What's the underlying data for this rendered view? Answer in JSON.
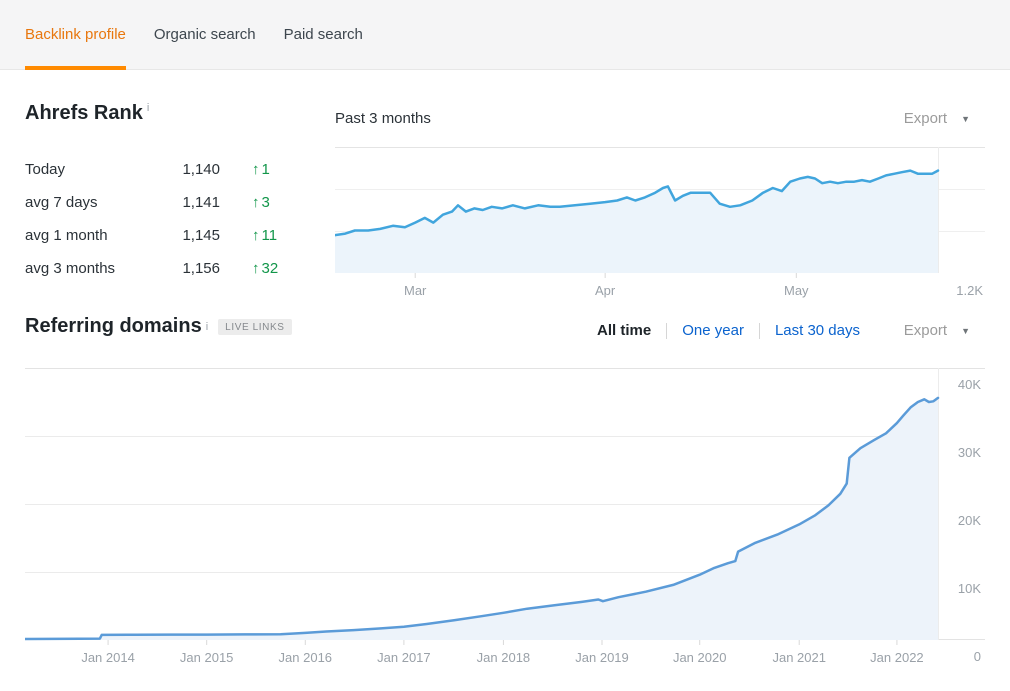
{
  "icons": {
    "info": "i",
    "caret_down": "▼",
    "up_arrow": "↑"
  },
  "colors": {
    "accent_orange": "#ff8a00",
    "tab_active_text": "#e8770e",
    "link_blue": "#0b63ce",
    "positive_green": "#12964a",
    "rank_line": "#41a5dd",
    "rank_fill": "#ecf4fb",
    "domains_line": "#5b9bd8",
    "domains_fill": "#edf3fa"
  },
  "tabs": {
    "items": [
      {
        "label": "Backlink profile",
        "active": true
      },
      {
        "label": "Organic search",
        "active": false
      },
      {
        "label": "Paid search",
        "active": false
      }
    ]
  },
  "ahrefs_rank": {
    "title": "Ahrefs Rank",
    "rows": [
      {
        "label": "Today",
        "value": "1,140",
        "delta": "1"
      },
      {
        "label": "avg 7 days",
        "value": "1,141",
        "delta": "3"
      },
      {
        "label": "avg 1 month",
        "value": "1,145",
        "delta": "11"
      },
      {
        "label": "avg 3 months",
        "value": "1,156",
        "delta": "32"
      }
    ]
  },
  "rank_panel": {
    "title": "Past 3 months",
    "export_label": "Export"
  },
  "referring_domains": {
    "title": "Referring domains",
    "badge": "LIVE LINKS",
    "filters": [
      {
        "label": "All time",
        "active": true
      },
      {
        "label": "One year",
        "active": false
      },
      {
        "label": "Last 30 days",
        "active": false
      }
    ],
    "export_label": "Export"
  },
  "chart_data": [
    {
      "type": "area",
      "name": "ahrefs-rank-past-3-months",
      "title": "Past 3 months",
      "y_axis": {
        "bottom": 1205,
        "top": 1125,
        "inverted_rank_axis": true
      },
      "y_bottom_label": "1.2K",
      "x_labels": [
        {
          "label": "Mar",
          "f": 0.133
        },
        {
          "label": "Apr",
          "f": 0.448
        },
        {
          "label": "May",
          "f": 0.765
        }
      ],
      "line_color": "#41a5dd",
      "fill_color": "#ecf4fb",
      "points": [
        [
          0.0,
          1181
        ],
        [
          0.017,
          1180
        ],
        [
          0.033,
          1178
        ],
        [
          0.055,
          1178
        ],
        [
          0.075,
          1177
        ],
        [
          0.096,
          1175
        ],
        [
          0.116,
          1176
        ],
        [
          0.133,
          1173
        ],
        [
          0.149,
          1170
        ],
        [
          0.163,
          1173
        ],
        [
          0.179,
          1168
        ],
        [
          0.194,
          1166
        ],
        [
          0.204,
          1162
        ],
        [
          0.217,
          1166
        ],
        [
          0.231,
          1164
        ],
        [
          0.245,
          1165
        ],
        [
          0.26,
          1163
        ],
        [
          0.277,
          1164
        ],
        [
          0.295,
          1162
        ],
        [
          0.315,
          1164
        ],
        [
          0.337,
          1162
        ],
        [
          0.357,
          1163
        ],
        [
          0.373,
          1163
        ],
        [
          0.398,
          1162
        ],
        [
          0.423,
          1161
        ],
        [
          0.448,
          1160
        ],
        [
          0.468,
          1159
        ],
        [
          0.484,
          1157
        ],
        [
          0.498,
          1159
        ],
        [
          0.514,
          1157
        ],
        [
          0.531,
          1154
        ],
        [
          0.544,
          1151
        ],
        [
          0.552,
          1150
        ],
        [
          0.564,
          1159
        ],
        [
          0.577,
          1156
        ],
        [
          0.59,
          1154
        ],
        [
          0.605,
          1154
        ],
        [
          0.622,
          1154
        ],
        [
          0.638,
          1161
        ],
        [
          0.655,
          1163
        ],
        [
          0.672,
          1162
        ],
        [
          0.692,
          1159
        ],
        [
          0.71,
          1154
        ],
        [
          0.726,
          1151
        ],
        [
          0.741,
          1153
        ],
        [
          0.755,
          1147
        ],
        [
          0.771,
          1145
        ],
        [
          0.784,
          1144
        ],
        [
          0.796,
          1145
        ],
        [
          0.808,
          1148
        ],
        [
          0.821,
          1147
        ],
        [
          0.834,
          1148
        ],
        [
          0.848,
          1147
        ],
        [
          0.861,
          1147
        ],
        [
          0.874,
          1146
        ],
        [
          0.887,
          1147
        ],
        [
          0.901,
          1145
        ],
        [
          0.914,
          1143
        ],
        [
          0.927,
          1142
        ],
        [
          0.94,
          1141
        ],
        [
          0.954,
          1140
        ],
        [
          0.967,
          1142
        ],
        [
          0.98,
          1142
        ],
        [
          0.99,
          1142
        ],
        [
          1.0,
          1140
        ]
      ]
    },
    {
      "type": "area",
      "name": "referring-domains-all-time",
      "ylim": [
        0,
        40000
      ],
      "y_ticks": [
        {
          "label": "40K",
          "value": 40000
        },
        {
          "label": "30K",
          "value": 30000
        },
        {
          "label": "20K",
          "value": 20000
        },
        {
          "label": "10K",
          "value": 10000
        },
        {
          "label": "0",
          "value": 0
        }
      ],
      "x_labels": [
        {
          "label": "Jan 2014",
          "f": 0.091
        },
        {
          "label": "Jan 2015",
          "f": 0.199
        },
        {
          "label": "Jan 2016",
          "f": 0.307
        },
        {
          "label": "Jan 2017",
          "f": 0.415
        },
        {
          "label": "Jan 2018",
          "f": 0.524
        },
        {
          "label": "Jan 2019",
          "f": 0.632
        },
        {
          "label": "Jan 2020",
          "f": 0.739
        },
        {
          "label": "Jan 2021",
          "f": 0.848
        },
        {
          "label": "Jan 2022",
          "f": 0.955
        }
      ],
      "line_color": "#5b9bd8",
      "fill_color": "#edf3fa",
      "points": [
        [
          0.0,
          150
        ],
        [
          0.03,
          160
        ],
        [
          0.06,
          180
        ],
        [
          0.082,
          200
        ],
        [
          0.084,
          750
        ],
        [
          0.12,
          780
        ],
        [
          0.16,
          800
        ],
        [
          0.199,
          800
        ],
        [
          0.24,
          820
        ],
        [
          0.28,
          850
        ],
        [
          0.295,
          950
        ],
        [
          0.307,
          1050
        ],
        [
          0.33,
          1250
        ],
        [
          0.36,
          1450
        ],
        [
          0.39,
          1700
        ],
        [
          0.415,
          1950
        ],
        [
          0.44,
          2350
        ],
        [
          0.47,
          2900
        ],
        [
          0.5,
          3500
        ],
        [
          0.524,
          4000
        ],
        [
          0.55,
          4600
        ],
        [
          0.58,
          5100
        ],
        [
          0.61,
          5600
        ],
        [
          0.628,
          5950
        ],
        [
          0.633,
          5700
        ],
        [
          0.65,
          6300
        ],
        [
          0.68,
          7100
        ],
        [
          0.71,
          8100
        ],
        [
          0.739,
          9600
        ],
        [
          0.755,
          10600
        ],
        [
          0.77,
          11300
        ],
        [
          0.778,
          11600
        ],
        [
          0.781,
          13000
        ],
        [
          0.8,
          14300
        ],
        [
          0.824,
          15500
        ],
        [
          0.848,
          17000
        ],
        [
          0.865,
          18300
        ],
        [
          0.88,
          19800
        ],
        [
          0.893,
          21500
        ],
        [
          0.9,
          23000
        ],
        [
          0.903,
          26800
        ],
        [
          0.915,
          28200
        ],
        [
          0.93,
          29400
        ],
        [
          0.943,
          30400
        ],
        [
          0.955,
          31900
        ],
        [
          0.962,
          33000
        ],
        [
          0.97,
          34200
        ],
        [
          0.978,
          35000
        ],
        [
          0.985,
          35400
        ],
        [
          0.99,
          35000
        ],
        [
          0.995,
          35100
        ],
        [
          1.0,
          35600
        ]
      ]
    }
  ]
}
